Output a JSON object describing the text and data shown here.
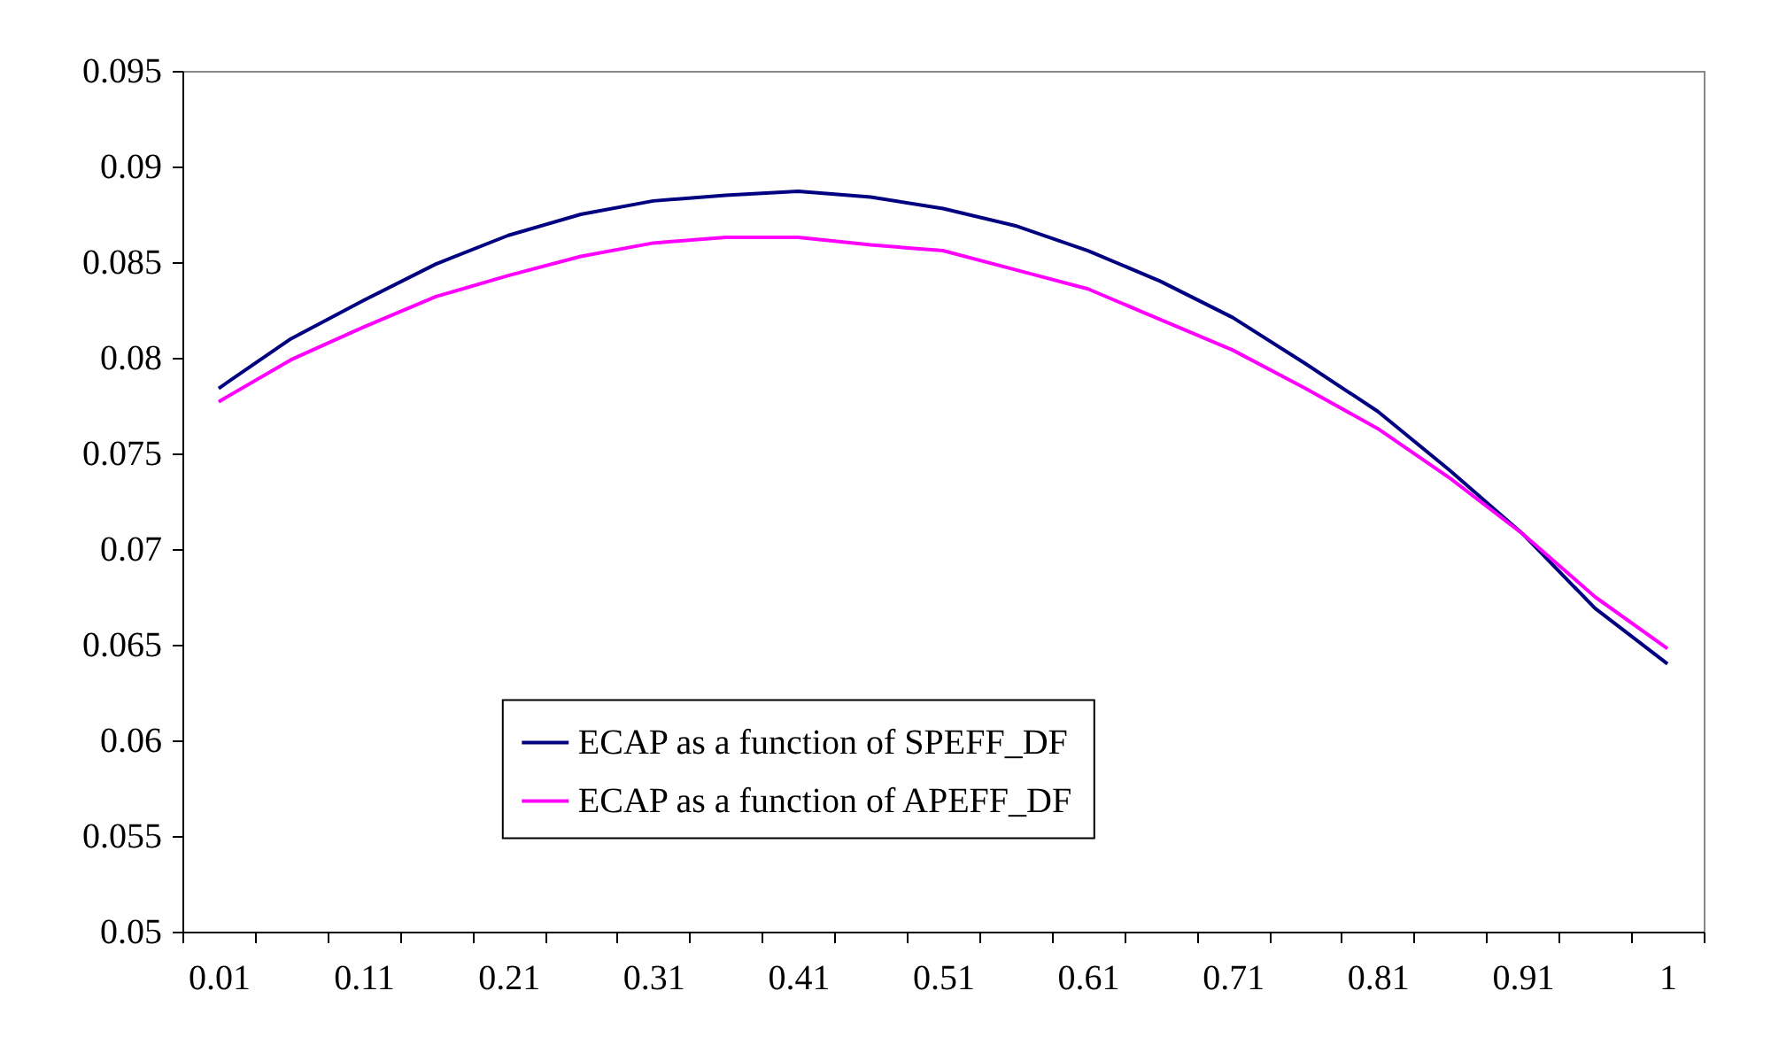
{
  "chart_data": {
    "type": "line",
    "categories": [
      "0.01",
      null,
      "0.11",
      null,
      "0.21",
      null,
      "0.31",
      null,
      "0.41",
      null,
      "0.51",
      null,
      "0.61",
      null,
      "0.71",
      null,
      "0.81",
      null,
      "0.91",
      null,
      "1"
    ],
    "series": [
      {
        "name": "ECAP as a function of SPEFF_DF",
        "color": "#000080",
        "values": [
          0.0784,
          0.081,
          0.083,
          0.0849,
          0.0864,
          0.0875,
          0.0882,
          0.0885,
          0.0887,
          0.0884,
          0.0878,
          0.0869,
          0.0856,
          0.084,
          0.0821,
          0.0797,
          0.0772,
          0.0741,
          0.0708,
          0.0669,
          0.064
        ]
      },
      {
        "name": "ECAP as a function of APEFF_DF",
        "color": "#ff00ff",
        "values": [
          0.0777,
          0.0799,
          0.0816,
          0.0832,
          0.0843,
          0.0853,
          0.086,
          0.0863,
          0.0863,
          0.0859,
          0.0856,
          0.0846,
          0.0836,
          0.082,
          0.0804,
          0.0784,
          0.0763,
          0.0737,
          0.0708,
          0.0675,
          0.0648
        ]
      }
    ],
    "ylim": [
      0.05,
      0.095
    ],
    "yticks": [
      0.05,
      0.055,
      0.06,
      0.065,
      0.07,
      0.075,
      0.08,
      0.085,
      0.09,
      0.095
    ],
    "grid": false,
    "legend": "bottom",
    "marker": "none",
    "line_style": "solid"
  }
}
